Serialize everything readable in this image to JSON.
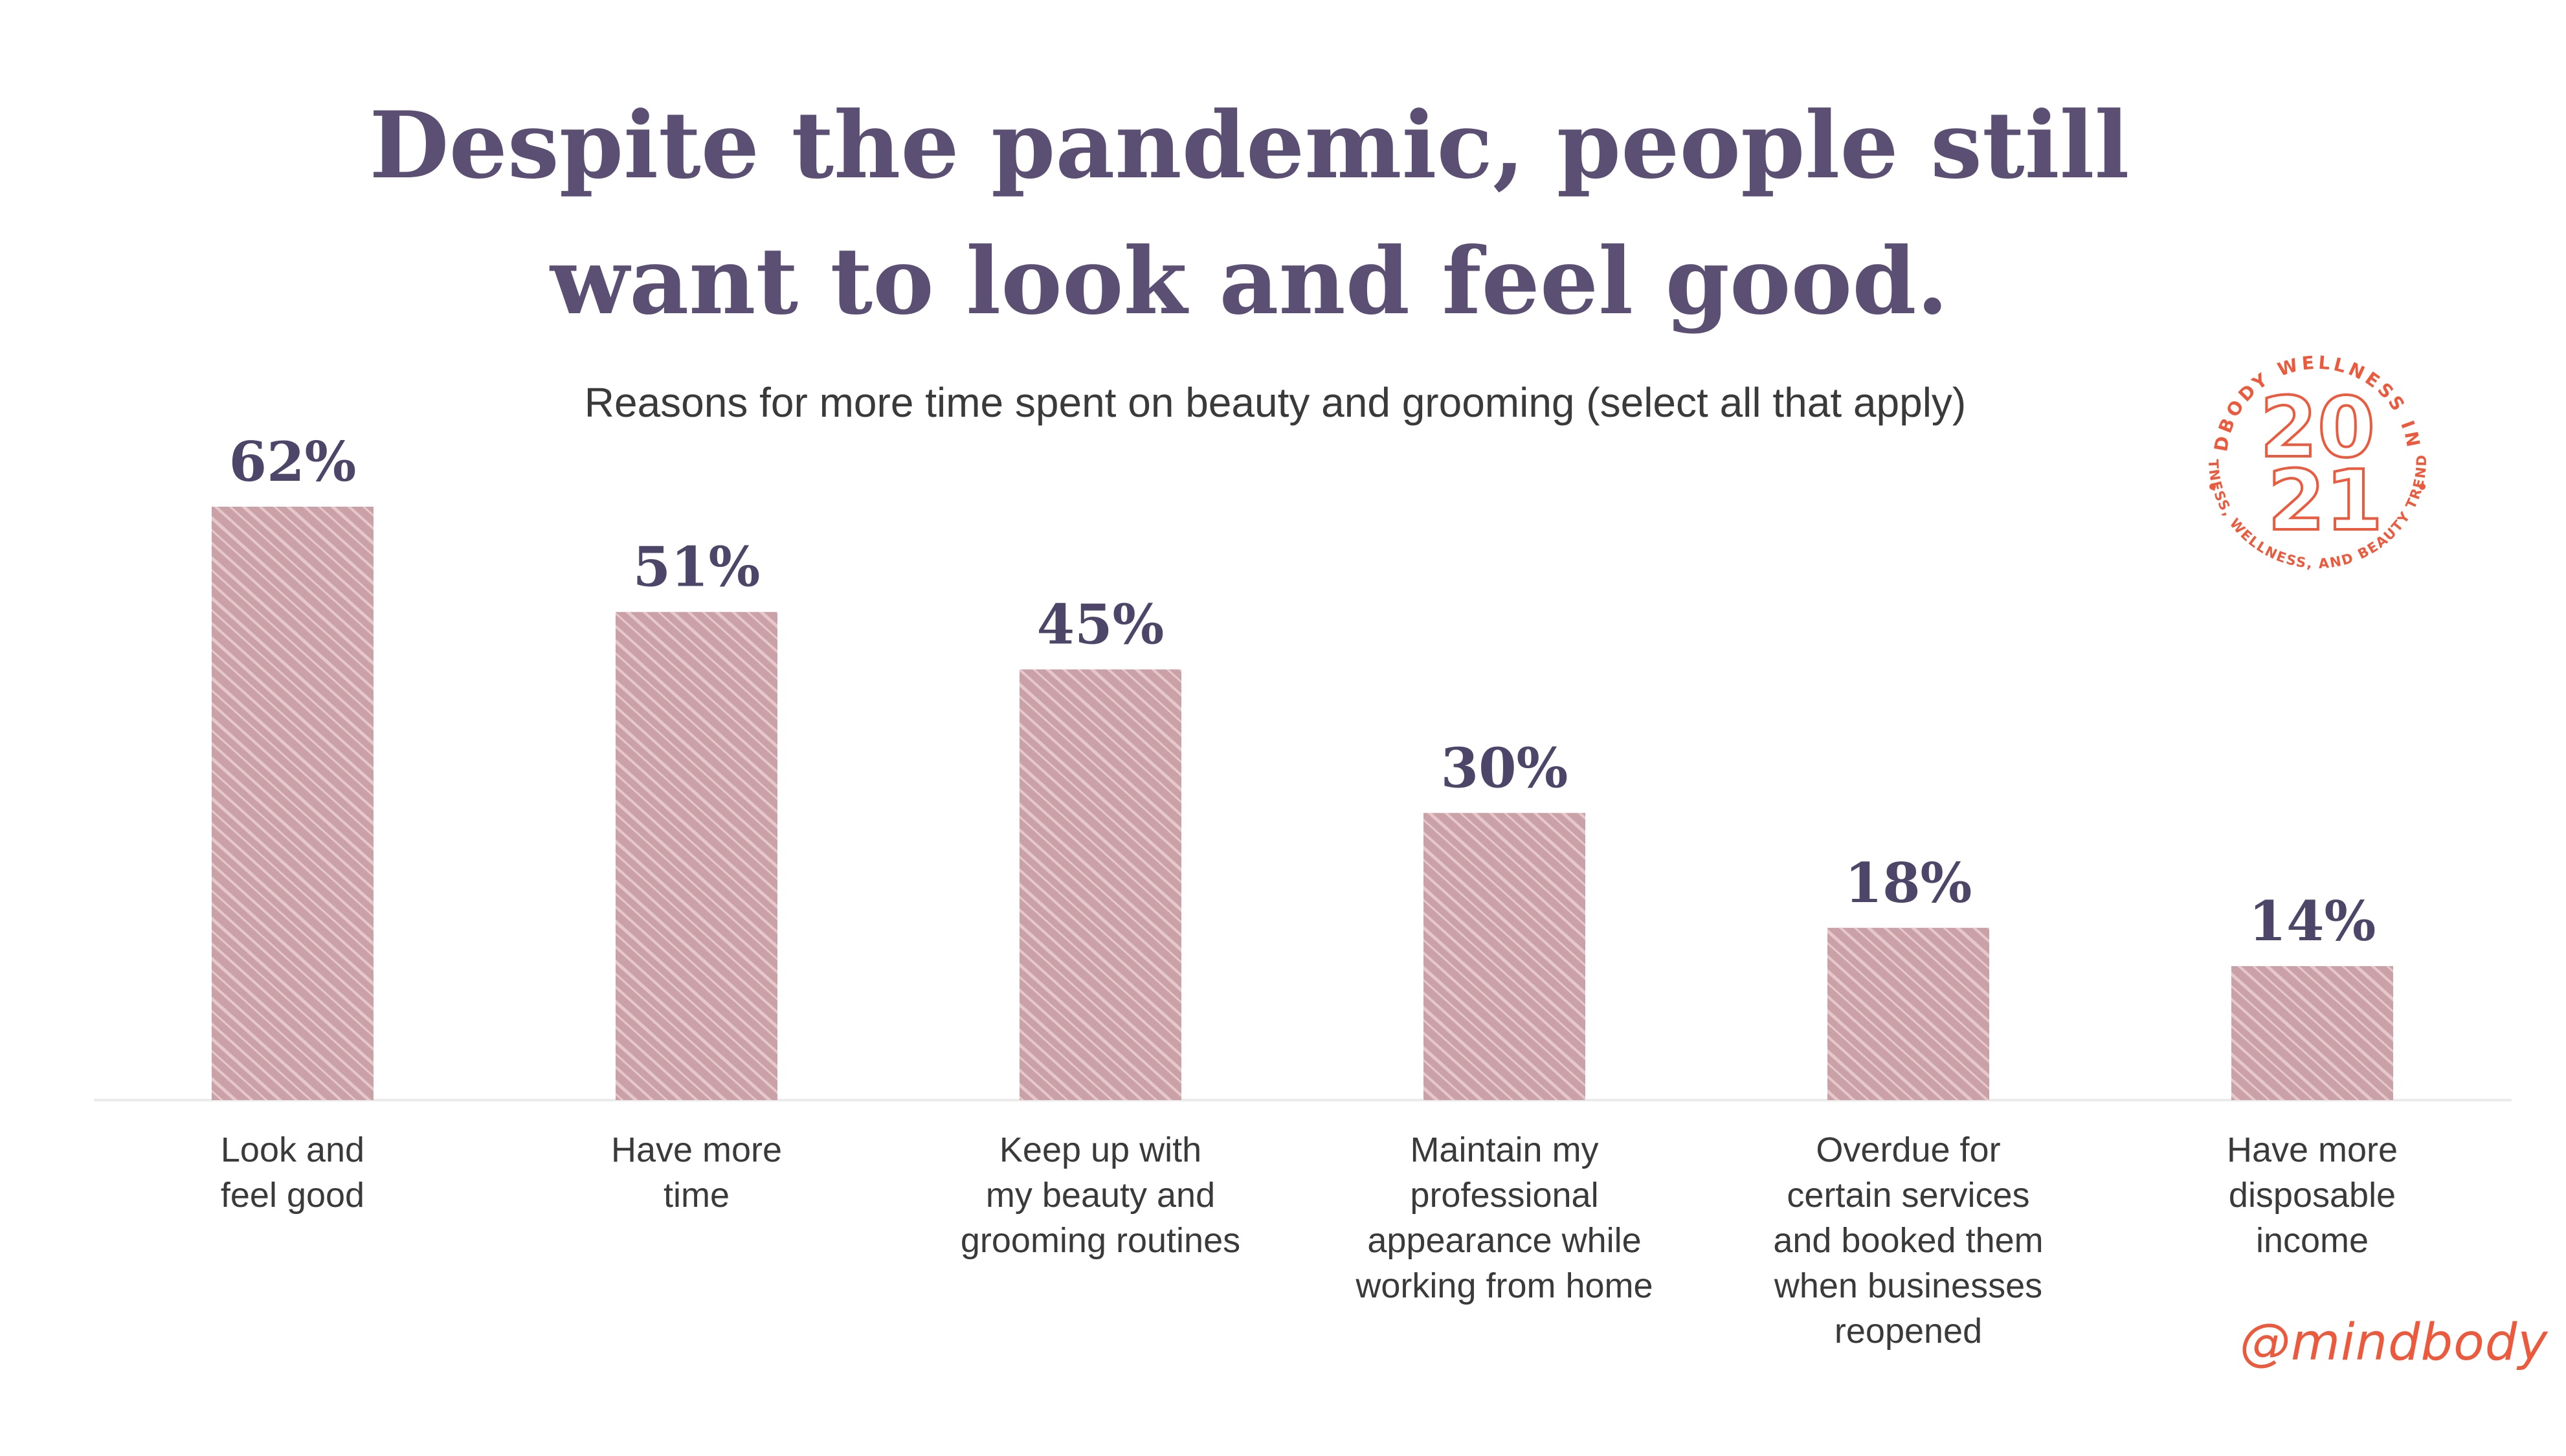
{
  "title_lines": [
    "Despite the pandemic, people still",
    "want to look and feel good."
  ],
  "subtitle": "Reasons for more time spent on beauty and grooming (select all that apply)",
  "chart_data": {
    "type": "bar",
    "title": "Despite the pandemic, people still want to look and feel good.",
    "subtitle": "Reasons for more time spent on beauty and grooming (select all that apply)",
    "categories": [
      [
        "Look and",
        "feel good"
      ],
      [
        "Have more",
        "time"
      ],
      [
        "Keep up with",
        "my beauty and",
        "grooming routines"
      ],
      [
        "Maintain my",
        "professional",
        "appearance while",
        "working from home"
      ],
      [
        "Overdue for",
        "certain services",
        "and booked them",
        "when businesses",
        "reopened"
      ],
      [
        "Have more",
        "disposable",
        "income"
      ]
    ],
    "values": [
      62,
      51,
      45,
      30,
      18,
      14
    ],
    "value_labels": [
      "62%",
      "51%",
      "45%",
      "30%",
      "18%",
      "14%"
    ],
    "ylim": [
      0,
      62
    ],
    "xlabel": "",
    "ylabel": "",
    "grid": false,
    "legend": false
  },
  "colors": {
    "bar": "#c9a1a6",
    "bar_texture": "#f0d4d6",
    "title": "#5b5074",
    "value_label": "#4e4668",
    "category_label": "#3a3a3a",
    "axis": "#ebebeb",
    "brand": "#ec5a3e"
  },
  "badge": {
    "ring_text_top": "MINDBODY WELLNESS INDEX",
    "ring_text_bottom": "FITNESS, WELLNESS, AND BEAUTY TRENDS",
    "year_top": "20",
    "year_bottom": "21"
  },
  "handle": "@mindbody"
}
